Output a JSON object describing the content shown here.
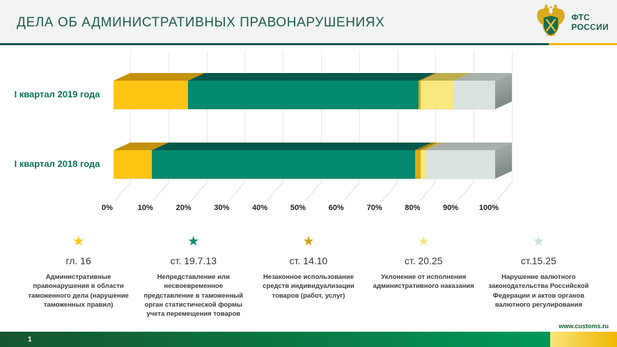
{
  "header": {
    "title": "ДЕЛА ОБ АДМИНИСТРАТИВНЫХ ПРАВОНАРУШЕНИЯХ",
    "logo": {
      "line1": "ФТС",
      "line2": "РОССИИ"
    }
  },
  "chart_data": {
    "type": "bar",
    "subtype": "horizontal-stacked-3d",
    "categories": [
      "I квартал 2019 года",
      "I квартал 2018 года"
    ],
    "series": [
      {
        "name": "гл. 16",
        "color": "#FFC515",
        "top_color": "#C4910A",
        "values": [
          19.5,
          10.0
        ]
      },
      {
        "name": "ст. 19.7.13",
        "color": "#04896E",
        "top_color": "#02584A",
        "values": [
          60.5,
          69.0
        ]
      },
      {
        "name": "ст. 14.10",
        "color": "#DFA810",
        "top_color": "#A67D08",
        "values": [
          0.5,
          1.5
        ]
      },
      {
        "name": "ст. 20.25",
        "color": "#F9E87E",
        "top_color": "#BFAC4B",
        "values": [
          8.5,
          1.5
        ]
      },
      {
        "name": "ст.15.25",
        "color": "#D8E3DD",
        "top_color": "#A7B1AB",
        "values": [
          11.0,
          18.0
        ]
      }
    ],
    "x_ticks": [
      "0%",
      "10%",
      "20%",
      "30%",
      "40%",
      "50%",
      "60%",
      "70%",
      "80%",
      "90%",
      "100%"
    ],
    "xlim": [
      0,
      100
    ],
    "unit": "percent",
    "grid": true,
    "legend_position": "bottom"
  },
  "legend": {
    "items": [
      {
        "code": "гл. 16",
        "star_color": "#FFC41C",
        "description": "Административные правонарушения в области таможенного дела (нарушение таможенных правил)"
      },
      {
        "code": "ст. 19.7.13",
        "star_color": "#0B8C70",
        "description": "Непредставление или несвоевременное представление в таможенный орган статистической формы учета перемещения товаров"
      },
      {
        "code": "ст. 14.10",
        "star_color": "#D2A018",
        "description": "Незаконное использование средств индивидуализации товаров (работ, услуг)"
      },
      {
        "code": "ст. 20.25",
        "star_color": "#F6E47A",
        "description": "Уклонение от исполнения административного наказания"
      },
      {
        "code": "ст.15.25",
        "star_color": "#CBDDD6",
        "description": "Нарушение валютного законодательства Российской Федерации и актов органов валютного регулирования"
      }
    ]
  },
  "footer": {
    "website": "www.customs.ru",
    "page_number": "1"
  },
  "colors": {
    "title": "#1F5B4B",
    "category_label": "#0A7457",
    "rule_green": "#14594A",
    "rule_gold": "#F0B400",
    "footer_green_start": "#16562F",
    "footer_green_mid": "#0B7A45",
    "footer_green_end": "#009859",
    "footer_gold_start": "#F9E37A",
    "footer_gold_end": "#EFB700"
  }
}
